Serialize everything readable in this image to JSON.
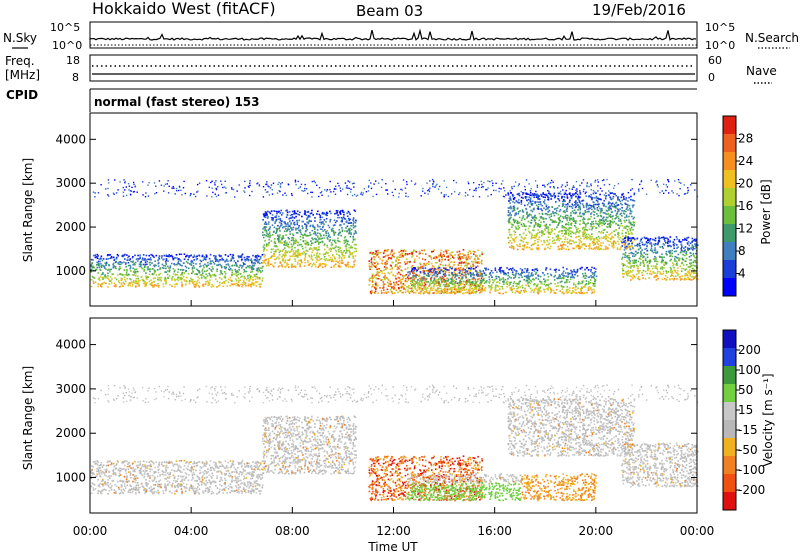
{
  "header": {
    "station": "Hokkaido West (fitACF)",
    "beam": "Beam 03",
    "date": "19/Feb/2016"
  },
  "noise_panel": {
    "left_label": "N.Sky",
    "right_label": "N.Search",
    "tick_top": "10^5",
    "tick_bottom": "10^0"
  },
  "freq_panel": {
    "left_label_1": "Freq.",
    "left_label_2": "[MHz]",
    "left_tick_top": "18",
    "left_tick_bottom": "8",
    "right_label": "Nave",
    "right_tick_top": "60",
    "right_tick_bottom": "0"
  },
  "cpid": {
    "label": "CPID",
    "mode_text": "normal (fast stereo) 153"
  },
  "colors": {
    "power_scale": [
      "#0000ff",
      "#1a3fd9",
      "#3f7fc0",
      "#3e9a6a",
      "#6bbf3c",
      "#b0d030",
      "#f0c020",
      "#f59020",
      "#f06020",
      "#e02010"
    ],
    "velocity_scale": [
      "#1010c0",
      "#2040e0",
      "#3c9a3c",
      "#70d040",
      "#c8c8c8",
      "#b8b8b8",
      "#f0b020",
      "#f08020",
      "#f05010",
      "#e01010"
    ]
  },
  "chart_data": [
    {
      "type": "heatmap",
      "name": "power",
      "ylabel": "Slant Range [km]",
      "yticks": [
        "1000",
        "2000",
        "3000",
        "4000"
      ],
      "ylim": [
        200,
        4600
      ],
      "xlim": [
        0,
        24
      ],
      "colorbar_label": "Power [dB]",
      "colorbar_ticks": [
        "4",
        "8",
        "12",
        "16",
        "20",
        "24",
        "28"
      ],
      "bands": [
        {
          "x0": 0.0,
          "x1": 6.8,
          "r0": 650,
          "r1": 1400,
          "level": "mid"
        },
        {
          "x0": 6.8,
          "x1": 10.5,
          "r0": 1100,
          "r1": 2400,
          "level": "mid"
        },
        {
          "x0": 11.0,
          "x1": 15.5,
          "r0": 500,
          "r1": 1500,
          "level": "high"
        },
        {
          "x0": 12.5,
          "x1": 20.0,
          "r0": 500,
          "r1": 1100,
          "level": "mid"
        },
        {
          "x0": 16.5,
          "x1": 21.5,
          "r0": 1500,
          "r1": 2800,
          "level": "mid"
        },
        {
          "x0": 21.0,
          "x1": 24.0,
          "r0": 800,
          "r1": 1800,
          "level": "mid"
        }
      ]
    },
    {
      "type": "heatmap",
      "name": "velocity",
      "ylabel": "Slant Range [km]",
      "yticks": [
        "1000",
        "2000",
        "3000",
        "4000"
      ],
      "ylim": [
        200,
        4600
      ],
      "xlim": [
        0,
        24
      ],
      "colorbar_label": "Velocity [m s⁻¹]",
      "colorbar_ticks": [
        "200",
        "100",
        "50",
        "15",
        "-15",
        "-50",
        "-100",
        "-200"
      ],
      "xlabel": "Time UT",
      "xticks": [
        "00:00",
        "04:00",
        "08:00",
        "12:00",
        "16:00",
        "20:00",
        "00:00"
      ]
    }
  ]
}
